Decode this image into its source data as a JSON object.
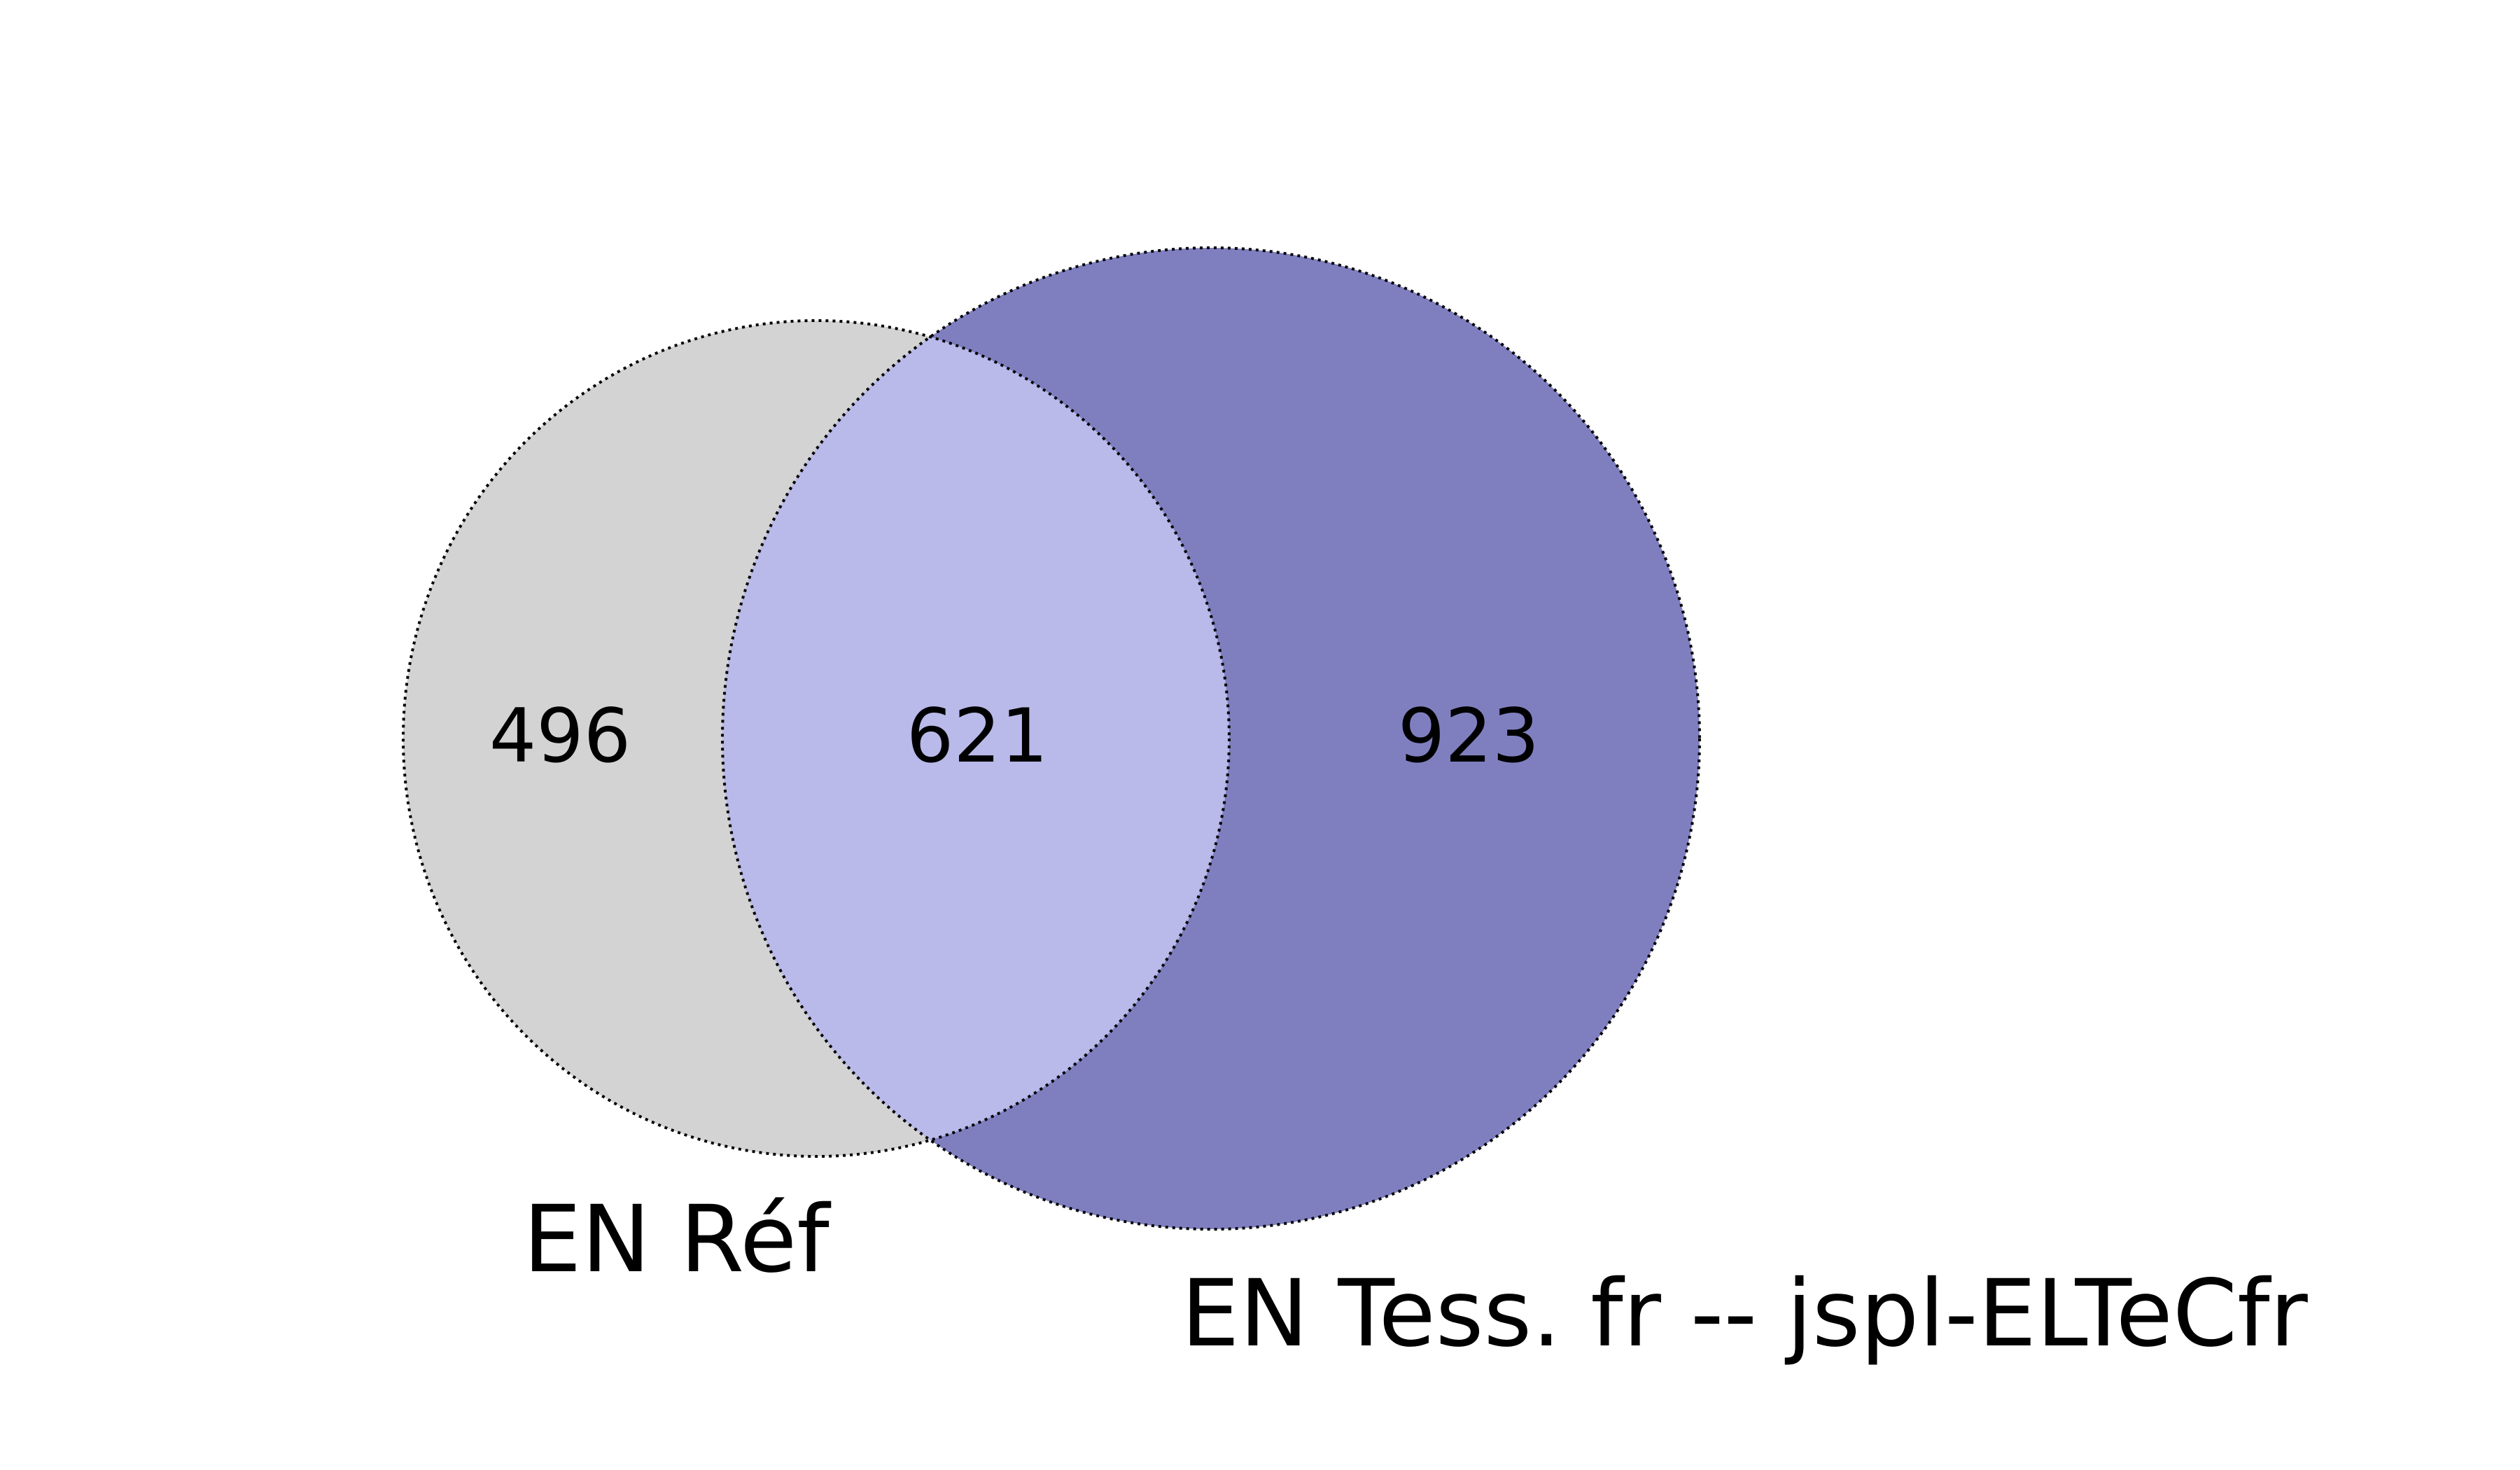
{
  "venn": {
    "sets": [
      {
        "name": "EN Réf",
        "only_count": "496",
        "color": "#d3d3d3"
      },
      {
        "name": "EN Tess. fr -- jspl-ELTeCfr",
        "only_count": "923",
        "color": "#7f7fc0"
      }
    ],
    "intersection": {
      "count": "621",
      "color": "#b9b9ea"
    }
  }
}
